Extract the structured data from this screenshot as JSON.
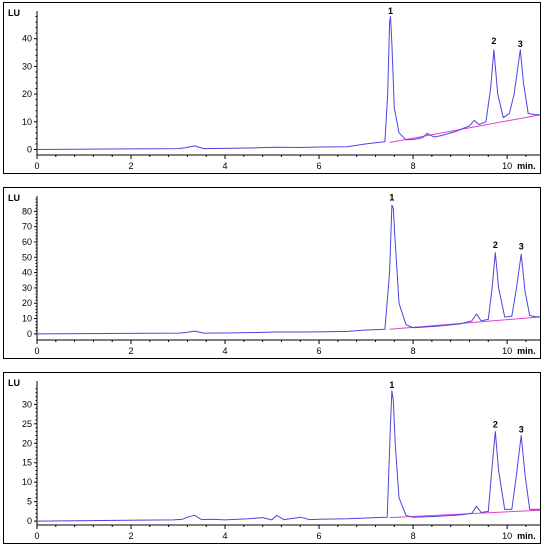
{
  "colors": {
    "trace": "#4b45e0",
    "baseline": "#e040d0",
    "axis": "#000000"
  },
  "chart_data": [
    {
      "type": "line",
      "ylabel": "LU",
      "xunit": "min.",
      "xlim": [
        0,
        10.7
      ],
      "ylim": [
        -2,
        50
      ],
      "yticks": [
        0,
        10,
        20,
        30,
        40
      ],
      "xticks": [
        0,
        2,
        4,
        6,
        8,
        10
      ],
      "baseline": {
        "x": [
          7.5,
          10.7
        ],
        "y": [
          2.5,
          12.5
        ]
      },
      "peak_labels": [
        {
          "text": "1",
          "x": 7.52,
          "y": 49
        },
        {
          "text": "2",
          "x": 9.72,
          "y": 38
        },
        {
          "text": "3",
          "x": 10.28,
          "y": 37
        }
      ],
      "series": [
        {
          "x": [
            0,
            3.0,
            3.15,
            3.35,
            3.55,
            4.0,
            4.7,
            5.1,
            5.6,
            6.0,
            6.6,
            7.0,
            7.4,
            7.46,
            7.5,
            7.52,
            7.55,
            7.6,
            7.7,
            7.85,
            8.0,
            8.2,
            8.3,
            8.45,
            8.6,
            8.9,
            9.2,
            9.3,
            9.4,
            9.55,
            9.65,
            9.72,
            9.8,
            9.92,
            10.05,
            10.15,
            10.28,
            10.35,
            10.45,
            10.6,
            10.7
          ],
          "y": [
            0,
            0.3,
            0.6,
            1.3,
            0.3,
            0.4,
            0.6,
            0.8,
            0.7,
            0.9,
            1.0,
            2.0,
            2.8,
            20,
            46,
            48,
            38,
            15,
            6,
            3.5,
            3.6,
            4.2,
            5.8,
            4.5,
            5.0,
            6.5,
            8.5,
            10.5,
            9.0,
            10.0,
            22,
            36,
            20,
            11.5,
            13,
            20,
            36,
            24,
            13,
            12.5,
            12.5
          ]
        }
      ]
    },
    {
      "type": "line",
      "ylabel": "LU",
      "xunit": "min.",
      "xlim": [
        0,
        10.7
      ],
      "ylim": [
        -4,
        90
      ],
      "yticks": [
        0,
        10,
        20,
        30,
        40,
        50,
        60,
        70,
        80
      ],
      "xticks": [
        0,
        2,
        4,
        6,
        8,
        10
      ],
      "baseline": {
        "x": [
          7.5,
          10.7
        ],
        "y": [
          3.0,
          11.0
        ]
      },
      "peak_labels": [
        {
          "text": "1",
          "x": 7.55,
          "y": 87
        },
        {
          "text": "2",
          "x": 9.75,
          "y": 56
        },
        {
          "text": "3",
          "x": 10.3,
          "y": 55
        }
      ],
      "series": [
        {
          "x": [
            0,
            3.0,
            3.15,
            3.35,
            3.55,
            4.0,
            4.7,
            5.1,
            5.6,
            6.0,
            6.6,
            7.0,
            7.4,
            7.5,
            7.55,
            7.58,
            7.62,
            7.7,
            7.85,
            8.0,
            8.5,
            9.0,
            9.25,
            9.35,
            9.45,
            9.6,
            9.68,
            9.75,
            9.82,
            9.95,
            10.1,
            10.2,
            10.3,
            10.38,
            10.48,
            10.6,
            10.7
          ],
          "y": [
            0,
            0.5,
            0.8,
            1.8,
            0.5,
            0.6,
            0.9,
            1.2,
            1.2,
            1.3,
            1.6,
            2.5,
            3.0,
            40,
            84,
            82,
            60,
            20,
            6,
            4.0,
            5.0,
            6.5,
            8.5,
            13,
            8.5,
            9.5,
            30,
            53,
            30,
            11.0,
            11.5,
            30,
            52,
            28,
            12,
            11.2,
            11.2
          ]
        }
      ]
    },
    {
      "type": "line",
      "ylabel": "LU",
      "xunit": "min.",
      "xlim": [
        0,
        10.7
      ],
      "ylim": [
        -1,
        36
      ],
      "yticks": [
        0,
        5,
        10,
        15,
        20,
        25,
        30
      ],
      "xticks": [
        0,
        2,
        4,
        6,
        8,
        10
      ],
      "baseline": {
        "x": [
          7.5,
          10.7
        ],
        "y": [
          0.9,
          2.8
        ]
      },
      "peak_labels": [
        {
          "text": "1",
          "x": 7.55,
          "y": 34.2
        },
        {
          "text": "2",
          "x": 9.75,
          "y": 24.0
        },
        {
          "text": "3",
          "x": 10.3,
          "y": 22.8
        }
      ],
      "series": [
        {
          "x": [
            0,
            2.9,
            3.1,
            3.2,
            3.35,
            3.5,
            3.7,
            4.0,
            4.5,
            4.8,
            5.0,
            5.1,
            5.25,
            5.5,
            5.6,
            5.8,
            6.0,
            6.6,
            7.0,
            7.45,
            7.52,
            7.55,
            7.58,
            7.62,
            7.7,
            7.85,
            8.0,
            8.5,
            9.0,
            9.25,
            9.35,
            9.45,
            9.6,
            9.68,
            9.75,
            9.82,
            9.95,
            10.1,
            10.2,
            10.3,
            10.38,
            10.48,
            10.6,
            10.7
          ],
          "y": [
            0,
            0.3,
            0.5,
            1.0,
            1.5,
            0.4,
            0.5,
            0.3,
            0.6,
            0.9,
            0.3,
            1.5,
            0.4,
            0.8,
            1.0,
            0.4,
            0.5,
            0.6,
            0.8,
            1.0,
            25,
            33.5,
            31,
            20,
            6,
            1.5,
            1.0,
            1.2,
            1.6,
            2.0,
            3.8,
            2.2,
            2.5,
            14,
            23,
            13,
            3.0,
            3.0,
            12,
            22,
            12,
            3.0,
            3.0,
            3.0
          ]
        }
      ]
    }
  ]
}
